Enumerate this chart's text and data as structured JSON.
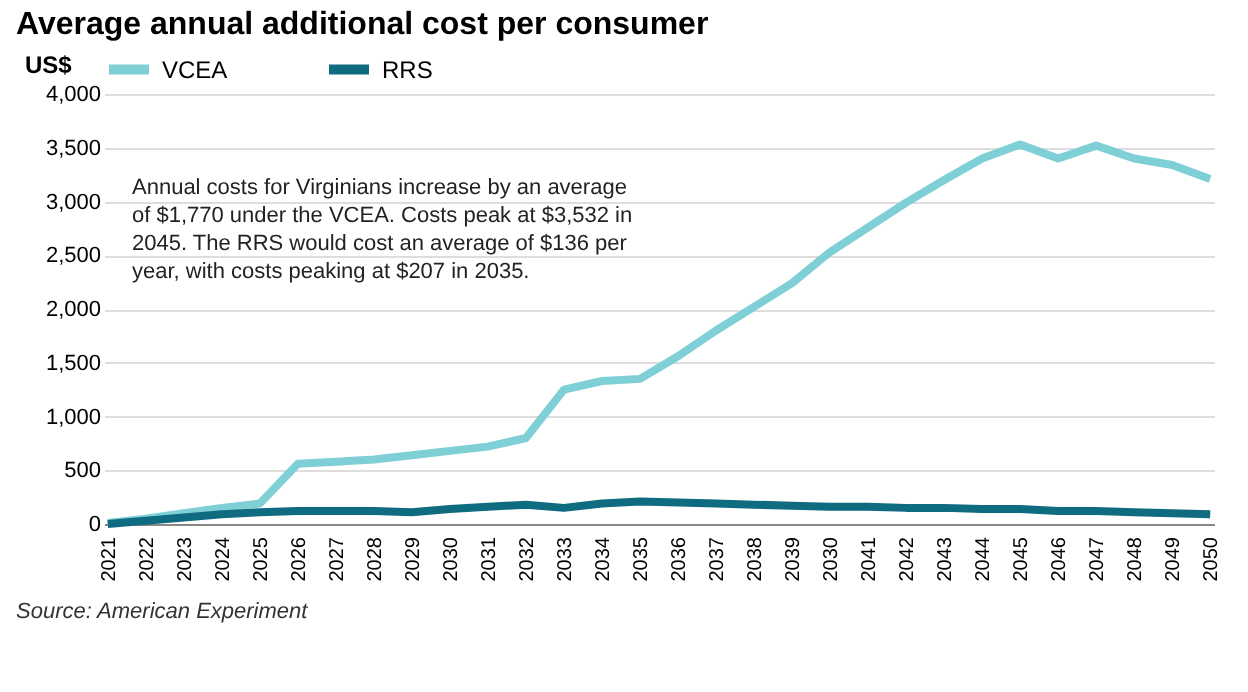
{
  "chart_data": {
    "type": "line",
    "title": "Average annual additional cost per consumer",
    "ylabel": "US$",
    "categories": [
      "2021",
      "2022",
      "2023",
      "2024",
      "2025",
      "2026",
      "2027",
      "2028",
      "2029",
      "2030",
      "2031",
      "2032",
      "2033",
      "2034",
      "2035",
      "2036",
      "2037",
      "2038",
      "2039",
      "2030",
      "2041",
      "2042",
      "2043",
      "2044",
      "2045",
      "2046",
      "2047",
      "2048",
      "2049",
      "2050"
    ],
    "series": [
      {
        "name": "VCEA",
        "color": "#7ecfd6",
        "values": [
          10,
          50,
          100,
          150,
          190,
          560,
          580,
          600,
          640,
          680,
          720,
          800,
          1250,
          1330,
          1350,
          1560,
          1800,
          2020,
          2240,
          2530,
          2760,
          2990,
          3200,
          3400,
          3530,
          3400,
          3520,
          3400,
          3340,
          3210
        ]
      },
      {
        "name": "RRS",
        "color": "#0f6b80",
        "values": [
          0,
          30,
          60,
          90,
          110,
          120,
          120,
          120,
          110,
          140,
          160,
          180,
          150,
          190,
          210,
          200,
          190,
          180,
          170,
          160,
          160,
          150,
          150,
          140,
          140,
          120,
          120,
          110,
          100,
          90
        ]
      }
    ],
    "ylim": [
      0,
      4000
    ],
    "yticks": [
      {
        "value": 0,
        "label": "0"
      },
      {
        "value": 500,
        "label": "500"
      },
      {
        "value": 1000,
        "label": "1,000"
      },
      {
        "value": 1500,
        "label": "1,500"
      },
      {
        "value": 2000,
        "label": "2,000"
      },
      {
        "value": 2500,
        "label": "2,500"
      },
      {
        "value": 3000,
        "label": "3,000"
      },
      {
        "value": 3500,
        "label": "3,500"
      },
      {
        "value": 4000,
        "label": "4,000"
      }
    ],
    "grid": "y",
    "legend": "top",
    "marker": "none",
    "line_style": "solid",
    "annotations": [
      "Annual costs for Virginians increase by an average of $1,770 under the VCEA. Costs peak at $3,532 in 2045. The RRS would cost an average of $136 per year, with costs peaking at $207 in 2035.",
      "Source: American Experiment"
    ]
  }
}
